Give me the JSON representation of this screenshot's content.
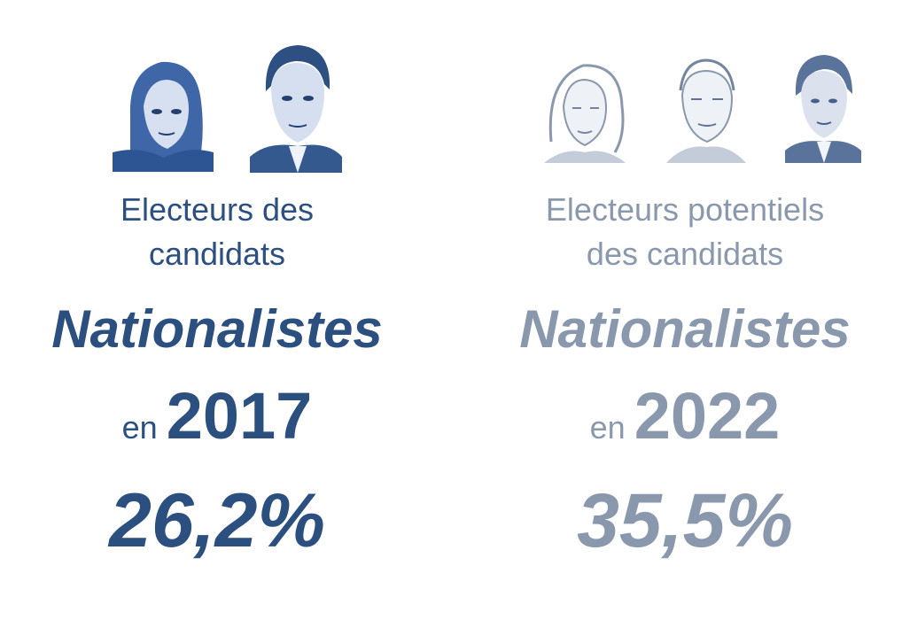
{
  "panels": {
    "left": {
      "subtitle_line1": "Electeurs des",
      "subtitle_line2": "candidats",
      "keyword": "Nationalistes",
      "en": "en",
      "year": "2017",
      "percent": "26,2%",
      "color": "#2b4f7f",
      "portraits": [
        "woman-portrait-icon",
        "man-portrait-icon"
      ]
    },
    "right": {
      "subtitle_line1": "Electeurs potentiels",
      "subtitle_line2": "des candidats",
      "keyword": "Nationalistes",
      "en": "en",
      "year": "2022",
      "percent": "35,5%",
      "color": "#8a98ad",
      "portraits": [
        "woman-portrait-sketch-icon",
        "man-portrait-sketch-icon",
        "man-portrait-icon"
      ]
    }
  }
}
